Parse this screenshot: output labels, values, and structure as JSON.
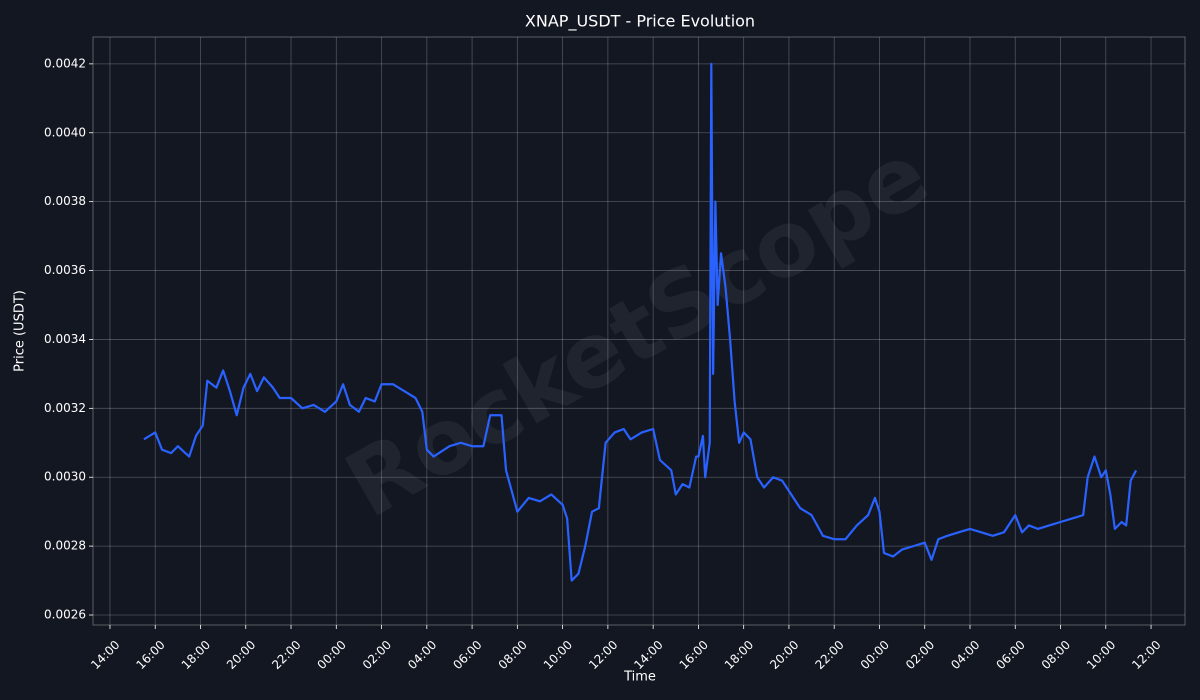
{
  "chart_data": {
    "type": "line",
    "title": "XNAP_USDT - Price Evolution",
    "xlabel": "Time",
    "ylabel": "Price (USDT)",
    "watermark": "RocketScope",
    "color": "#2962ff",
    "grid": true,
    "xlim": [
      13.25,
      61.5
    ],
    "ylim": [
      0.002571,
      0.004278
    ],
    "xticks": [
      {
        "value": 14,
        "label": "14:00"
      },
      {
        "value": 16,
        "label": "16:00"
      },
      {
        "value": 18,
        "label": "18:00"
      },
      {
        "value": 20,
        "label": "20:00"
      },
      {
        "value": 22,
        "label": "22:00"
      },
      {
        "value": 24,
        "label": "00:00"
      },
      {
        "value": 26,
        "label": "02:00"
      },
      {
        "value": 28,
        "label": "04:00"
      },
      {
        "value": 30,
        "label": "06:00"
      },
      {
        "value": 32,
        "label": "08:00"
      },
      {
        "value": 34,
        "label": "10:00"
      },
      {
        "value": 36,
        "label": "12:00"
      },
      {
        "value": 38,
        "label": "14:00"
      },
      {
        "value": 40,
        "label": "16:00"
      },
      {
        "value": 42,
        "label": "18:00"
      },
      {
        "value": 44,
        "label": "20:00"
      },
      {
        "value": 46,
        "label": "22:00"
      },
      {
        "value": 48,
        "label": "00:00"
      },
      {
        "value": 50,
        "label": "02:00"
      },
      {
        "value": 52,
        "label": "04:00"
      },
      {
        "value": 54,
        "label": "06:00"
      },
      {
        "value": 56,
        "label": "08:00"
      },
      {
        "value": 58,
        "label": "10:00"
      },
      {
        "value": 60,
        "label": "12:00"
      }
    ],
    "yticks": [
      {
        "value": 0.0026,
        "label": "0.0026"
      },
      {
        "value": 0.0028,
        "label": "0.0028"
      },
      {
        "value": 0.003,
        "label": "0.0030"
      },
      {
        "value": 0.0032,
        "label": "0.0032"
      },
      {
        "value": 0.0034,
        "label": "0.0034"
      },
      {
        "value": 0.0036,
        "label": "0.0036"
      },
      {
        "value": 0.0038,
        "label": "0.0038"
      },
      {
        "value": 0.004,
        "label": "0.0040"
      },
      {
        "value": 0.0042,
        "label": "0.0042"
      }
    ],
    "x": [
      15.5,
      16.0,
      16.3,
      16.7,
      17.0,
      17.5,
      17.8,
      18.1,
      18.3,
      18.7,
      19.0,
      19.3,
      19.6,
      19.9,
      20.2,
      20.5,
      20.8,
      21.2,
      21.5,
      22.0,
      22.5,
      23.0,
      23.5,
      24.0,
      24.3,
      24.6,
      25.0,
      25.3,
      25.7,
      26.0,
      26.5,
      27.0,
      27.5,
      27.8,
      28.0,
      28.3,
      29.0,
      29.5,
      30.0,
      30.5,
      30.8,
      31.3,
      31.5,
      32.0,
      32.5,
      33.0,
      33.5,
      34.0,
      34.2,
      34.4,
      34.7,
      35.0,
      35.3,
      35.6,
      35.9,
      36.3,
      36.7,
      37.0,
      37.5,
      38.0,
      38.3,
      38.8,
      39.0,
      39.3,
      39.6,
      39.9,
      40.0,
      40.2,
      40.3,
      40.5,
      40.57,
      40.65,
      40.75,
      40.85,
      41.0,
      41.2,
      41.4,
      41.6,
      41.8,
      42.0,
      42.3,
      42.6,
      42.9,
      43.3,
      43.7,
      44.0,
      44.5,
      45.0,
      45.5,
      46.0,
      46.5,
      47.0,
      47.5,
      47.8,
      48.0,
      48.2,
      48.6,
      49.0,
      49.5,
      50.0,
      50.3,
      50.6,
      51.0,
      51.5,
      52.0,
      52.5,
      53.0,
      53.5,
      54.0,
      54.3,
      54.6,
      55.0,
      55.5,
      56.0,
      56.5,
      57.0,
      57.2,
      57.5,
      57.8,
      58.0,
      58.2,
      58.4,
      58.7,
      58.9,
      59.1,
      59.34
    ],
    "values": [
      0.00311,
      0.00313,
      0.00308,
      0.00307,
      0.00309,
      0.00306,
      0.00312,
      0.00315,
      0.00328,
      0.00326,
      0.00331,
      0.00325,
      0.00318,
      0.00326,
      0.0033,
      0.00325,
      0.00329,
      0.00326,
      0.00323,
      0.00323,
      0.0032,
      0.00321,
      0.00319,
      0.00322,
      0.00327,
      0.00321,
      0.00319,
      0.00323,
      0.00322,
      0.00327,
      0.00327,
      0.00325,
      0.00323,
      0.00319,
      0.00308,
      0.00306,
      0.00309,
      0.0031,
      0.00309,
      0.00309,
      0.00318,
      0.00318,
      0.00302,
      0.0029,
      0.00294,
      0.00293,
      0.00295,
      0.00292,
      0.00288,
      0.0027,
      0.00272,
      0.0028,
      0.0029,
      0.00291,
      0.0031,
      0.00313,
      0.00314,
      0.00311,
      0.00313,
      0.00314,
      0.00305,
      0.00302,
      0.00295,
      0.00298,
      0.00297,
      0.00306,
      0.00306,
      0.00312,
      0.003,
      0.0031,
      0.0042,
      0.0033,
      0.0038,
      0.0035,
      0.00365,
      0.00355,
      0.0034,
      0.00322,
      0.0031,
      0.00313,
      0.00311,
      0.003,
      0.00297,
      0.003,
      0.00299,
      0.00296,
      0.00291,
      0.00289,
      0.00283,
      0.00282,
      0.00282,
      0.00286,
      0.00289,
      0.00294,
      0.0029,
      0.00278,
      0.00277,
      0.00279,
      0.0028,
      0.00281,
      0.00276,
      0.00282,
      0.00283,
      0.00284,
      0.00285,
      0.00284,
      0.00283,
      0.00284,
      0.00289,
      0.00284,
      0.00286,
      0.00285,
      0.00286,
      0.00287,
      0.00288,
      0.00289,
      0.003,
      0.00306,
      0.003,
      0.00302,
      0.00295,
      0.00285,
      0.00287,
      0.00286,
      0.00299,
      0.00302
    ]
  }
}
